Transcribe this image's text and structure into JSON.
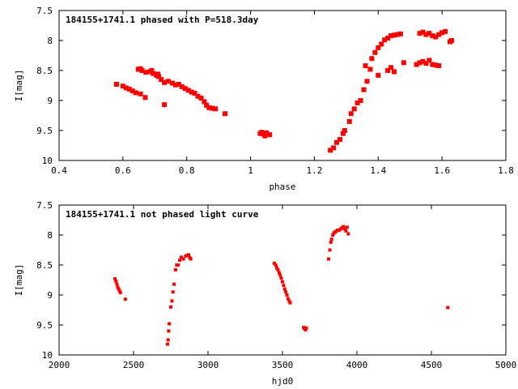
{
  "chart_data": [
    {
      "type": "scatter",
      "title": "184155+1741.1 phased with P=518.3day",
      "xlabel": "phase",
      "ylabel": "I[mag]",
      "xlim": [
        0.4,
        1.8
      ],
      "ylim": [
        10,
        7.5
      ],
      "y_inverted": true,
      "xticks": [
        "0.4",
        "0.6",
        "0.8",
        "1",
        "1.2",
        "1.4",
        "1.6",
        "1.8"
      ],
      "yticks": [
        "7.5",
        "8",
        "8.5",
        "9",
        "9.5",
        "10"
      ],
      "marker_color": "#ff0000",
      "series": [
        {
          "points": [
            [
              0.58,
              8.73
            ],
            [
              0.6,
              8.76
            ],
            [
              0.61,
              8.79
            ],
            [
              0.62,
              8.81
            ],
            [
              0.63,
              8.84
            ],
            [
              0.64,
              8.87
            ],
            [
              0.655,
              8.89
            ],
            [
              0.67,
              8.95
            ],
            [
              0.648,
              8.48
            ],
            [
              0.66,
              8.5
            ],
            [
              0.672,
              8.53
            ],
            [
              0.684,
              8.52
            ],
            [
              0.695,
              8.55
            ],
            [
              0.705,
              8.58
            ],
            [
              0.712,
              8.6
            ],
            [
              0.72,
              8.65
            ],
            [
              0.73,
              8.7
            ],
            [
              0.742,
              8.68
            ],
            [
              0.755,
              8.71
            ],
            [
              0.765,
              8.74
            ],
            [
              0.775,
              8.73
            ],
            [
              0.785,
              8.77
            ],
            [
              0.795,
              8.8
            ],
            [
              0.805,
              8.83
            ],
            [
              0.815,
              8.86
            ],
            [
              0.825,
              8.88
            ],
            [
              0.835,
              8.93
            ],
            [
              0.845,
              8.96
            ],
            [
              0.855,
              9.02
            ],
            [
              0.862,
              9.08
            ],
            [
              0.87,
              9.12
            ],
            [
              0.88,
              9.13
            ],
            [
              0.89,
              9.14
            ],
            [
              0.73,
              9.07
            ],
            [
              0.92,
              9.22
            ],
            [
              0.655,
              8.47
            ],
            [
              0.69,
              8.5
            ],
            [
              0.71,
              8.56
            ],
            [
              1.03,
              9.55
            ],
            [
              1.04,
              9.56
            ],
            [
              1.05,
              9.54
            ],
            [
              1.06,
              9.57
            ],
            [
              1.045,
              9.59
            ],
            [
              1.035,
              9.53
            ],
            [
              1.25,
              9.83
            ],
            [
              1.26,
              9.79
            ],
            [
              1.27,
              9.7
            ],
            [
              1.28,
              9.65
            ],
            [
              1.29,
              9.55
            ],
            [
              1.295,
              9.5
            ],
            [
              1.31,
              9.35
            ],
            [
              1.315,
              9.22
            ],
            [
              1.325,
              9.14
            ],
            [
              1.335,
              9.04
            ],
            [
              1.345,
              9.0
            ],
            [
              1.355,
              8.82
            ],
            [
              1.365,
              8.68
            ],
            [
              1.375,
              8.48
            ],
            [
              1.38,
              8.3
            ],
            [
              1.39,
              8.2
            ],
            [
              1.4,
              8.12
            ],
            [
              1.41,
              8.06
            ],
            [
              1.42,
              7.99
            ],
            [
              1.43,
              7.96
            ],
            [
              1.44,
              7.92
            ],
            [
              1.45,
              7.91
            ],
            [
              1.46,
              7.9
            ],
            [
              1.47,
              7.89
            ],
            [
              1.36,
              8.42
            ],
            [
              1.4,
              8.58
            ],
            [
              1.43,
              8.5
            ],
            [
              1.44,
              8.45
            ],
            [
              1.45,
              8.52
            ],
            [
              1.48,
              8.37
            ],
            [
              1.53,
              7.88
            ],
            [
              1.54,
              7.86
            ],
            [
              1.55,
              7.9
            ],
            [
              1.56,
              7.88
            ],
            [
              1.57,
              7.92
            ],
            [
              1.58,
              7.94
            ],
            [
              1.59,
              7.9
            ],
            [
              1.6,
              7.87
            ],
            [
              1.61,
              7.85
            ],
            [
              1.63,
              8.0
            ],
            [
              1.625,
              8.02
            ],
            [
              1.52,
              8.4
            ],
            [
              1.53,
              8.37
            ],
            [
              1.54,
              8.35
            ],
            [
              1.55,
              8.38
            ],
            [
              1.56,
              8.33
            ],
            [
              1.57,
              8.4
            ],
            [
              1.58,
              8.41
            ],
            [
              1.59,
              8.42
            ]
          ]
        }
      ]
    },
    {
      "type": "scatter",
      "title": "184155+1741.1 not phased light curve",
      "xlabel": "hjd0",
      "ylabel": "I[mag]",
      "xlim": [
        2000,
        5000
      ],
      "ylim": [
        10,
        7.5
      ],
      "y_inverted": true,
      "xticks": [
        "2000",
        "2500",
        "3000",
        "3500",
        "4000",
        "4500",
        "5000"
      ],
      "yticks": [
        "7.5",
        "8",
        "8.5",
        "9",
        "9.5",
        "10"
      ],
      "marker_color": "#ff0000",
      "series": [
        {
          "points": [
            [
              2375,
              8.73
            ],
            [
              2382,
              8.77
            ],
            [
              2388,
              8.82
            ],
            [
              2394,
              8.87
            ],
            [
              2400,
              8.9
            ],
            [
              2406,
              8.93
            ],
            [
              2412,
              8.96
            ],
            [
              2445,
              9.07
            ],
            [
              2728,
              9.82
            ],
            [
              2732,
              9.75
            ],
            [
              2736,
              9.6
            ],
            [
              2740,
              9.48
            ],
            [
              2750,
              9.2
            ],
            [
              2758,
              9.1
            ],
            [
              2765,
              8.95
            ],
            [
              2772,
              8.82
            ],
            [
              2782,
              8.58
            ],
            [
              2790,
              8.5
            ],
            [
              2800,
              8.5
            ],
            [
              2810,
              8.42
            ],
            [
              2820,
              8.37
            ],
            [
              2835,
              8.4
            ],
            [
              2850,
              8.35
            ],
            [
              2862,
              8.34
            ],
            [
              2870,
              8.33
            ],
            [
              2878,
              8.38
            ],
            [
              2884,
              8.4
            ],
            [
              3445,
              8.47
            ],
            [
              3455,
              8.5
            ],
            [
              3462,
              8.55
            ],
            [
              3470,
              8.58
            ],
            [
              3478,
              8.63
            ],
            [
              3485,
              8.67
            ],
            [
              3492,
              8.72
            ],
            [
              3500,
              8.78
            ],
            [
              3508,
              8.84
            ],
            [
              3515,
              8.9
            ],
            [
              3522,
              8.95
            ],
            [
              3530,
              9.0
            ],
            [
              3537,
              9.06
            ],
            [
              3545,
              9.1
            ],
            [
              3552,
              9.13
            ],
            [
              3642,
              9.54
            ],
            [
              3648,
              9.56
            ],
            [
              3655,
              9.58
            ],
            [
              3660,
              9.55
            ],
            [
              3810,
              8.4
            ],
            [
              3818,
              8.25
            ],
            [
              3825,
              8.12
            ],
            [
              3830,
              8.07
            ],
            [
              3838,
              8.0
            ],
            [
              3845,
              7.97
            ],
            [
              3852,
              7.95
            ],
            [
              3860,
              7.94
            ],
            [
              3870,
              7.92
            ],
            [
              3880,
              7.92
            ],
            [
              3890,
              7.9
            ],
            [
              3900,
              7.88
            ],
            [
              3910,
              7.86
            ],
            [
              3918,
              7.9
            ],
            [
              3926,
              7.93
            ],
            [
              3934,
              7.87
            ],
            [
              3942,
              7.98
            ],
            [
              4610,
              9.21
            ]
          ]
        }
      ]
    }
  ]
}
